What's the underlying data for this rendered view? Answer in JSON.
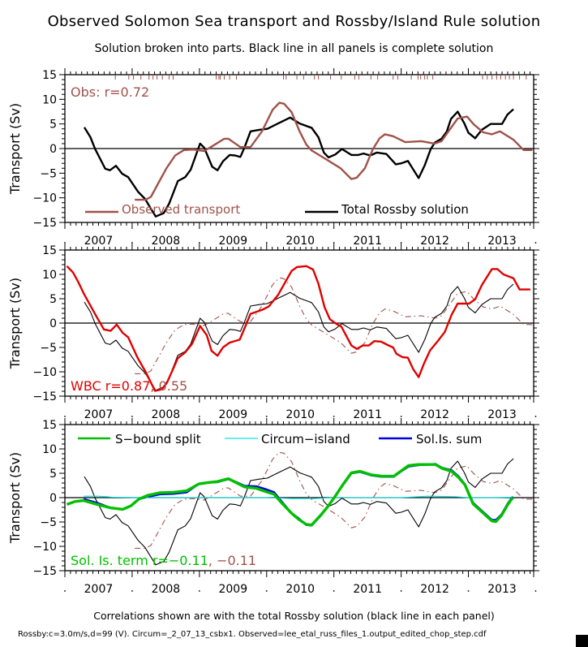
{
  "title": "Observed Solomon Sea transport and Rossby/Island Rule solution",
  "subtitle": "Solution broken into parts. Black line in all panels is complete solution",
  "footnote": "Correlations shown are with the total Rossby solution (black line in each panel)",
  "footnote_small": "Rossby:c=3.0m/s,d=99 (V). Circum=_2_07_13_csbx1. Observed=lee_etal_russ_files_1.output_edited_chop_step.cdf",
  "colors": {
    "observed": "#a0524a",
    "rossby": "#000000",
    "wbc": "#e00000",
    "s_bound": "#00c000",
    "circum": "#00e8e8",
    "sol_is_sum": "#0000e0"
  },
  "chart_data": [
    {
      "type": "line",
      "panel": "top",
      "title": "",
      "xlabel": "",
      "ylabel": "Transport (Sv)",
      "xlim": [
        2007.0,
        2013.97
      ],
      "ylim": [
        -15,
        15
      ],
      "x_tick_labels": [
        "2007",
        "2008",
        "2009",
        "2010",
        "2011",
        "2012",
        "2013"
      ],
      "y_tick_labels": [
        "15",
        "10",
        "5",
        "0",
        "-5",
        "-10",
        "-15"
      ],
      "annotation": "Obs: r=0.72",
      "legend": [
        "Observed transport",
        "Total Rossby solution"
      ],
      "legend_placement": "bottom",
      "obs_sample_ticks": [
        2007.75,
        2007.95,
        2008.02,
        2008.13,
        2008.25,
        2008.31,
        2008.37,
        2008.45,
        2008.55,
        2008.61,
        2009.25,
        2009.29,
        2009.31,
        2009.37,
        2009.45,
        2009.55,
        2010.25,
        2010.29,
        2010.45,
        2010.55,
        2010.71,
        2010.77,
        2010.95,
        2011.11,
        2011.31,
        2011.37,
        2011.55,
        2011.65,
        2011.88,
        2011.95,
        2012.15,
        2012.25,
        2012.29,
        2012.35,
        2012.39,
        2012.47,
        2013.21,
        2013.28,
        2013.35,
        2013.42,
        2013.48,
        2013.55,
        2013.61,
        2013.67,
        2013.76,
        2013.86
      ],
      "series": [
        {
          "name": "Observed transport",
          "key": "observed",
          "style": "solid-thick",
          "x": [
            2008.04,
            2008.2,
            2008.28,
            2008.39,
            2008.51,
            2008.64,
            2008.77,
            2008.91,
            2009.07,
            2009.17,
            2009.37,
            2009.43,
            2009.61,
            2009.76,
            2009.93,
            2010.09,
            2010.19,
            2010.26,
            2010.37,
            2010.49,
            2010.59,
            2010.67,
            2010.9,
            2011.1,
            2011.26,
            2011.34,
            2011.46,
            2011.58,
            2011.68,
            2011.76,
            2011.88,
            2012.06,
            2012.3,
            2012.5,
            2012.6,
            2012.72,
            2012.84,
            2012.98,
            2013.08,
            2013.22,
            2013.35,
            2013.47,
            2013.67,
            2013.82,
            2013.95
          ],
          "y": [
            -10.4,
            -10.4,
            -9.8,
            -7.0,
            -4.0,
            -1.4,
            -0.3,
            -0.2,
            -0.5,
            0.3,
            2.0,
            2.0,
            0.3,
            0.3,
            3.5,
            7.9,
            9.3,
            9.1,
            7.4,
            3.5,
            0.8,
            -0.4,
            -2.3,
            -4.0,
            -6.2,
            -5.9,
            -4.0,
            -0.1,
            2.1,
            2.9,
            2.5,
            1.3,
            1.5,
            1.0,
            1.5,
            3.8,
            6.1,
            6.5,
            4.9,
            3.3,
            2.9,
            3.5,
            1.8,
            -0.3,
            -0.3
          ]
        },
        {
          "name": "Total Rossby solution",
          "key": "rossby",
          "style": "solid-thick",
          "x": [
            2007.29,
            2007.38,
            2007.45,
            2007.6,
            2007.67,
            2007.76,
            2007.85,
            2007.94,
            2008.09,
            2008.19,
            2008.35,
            2008.47,
            2008.55,
            2008.68,
            2008.79,
            2008.87,
            2009.01,
            2009.07,
            2009.19,
            2009.27,
            2009.35,
            2009.45,
            2009.53,
            2009.61,
            2009.67,
            2009.76,
            2009.89,
            2010.01,
            2010.17,
            2010.35,
            2010.49,
            2010.67,
            2010.77,
            2010.85,
            2010.92,
            2011.02,
            2011.12,
            2011.26,
            2011.36,
            2011.44,
            2011.54,
            2011.64,
            2011.78,
            2011.92,
            2012.0,
            2012.1,
            2012.26,
            2012.35,
            2012.44,
            2012.5,
            2012.6,
            2012.68,
            2012.74,
            2012.84,
            2012.94,
            2013.0,
            2013.1,
            2013.2,
            2013.33,
            2013.5,
            2013.58,
            2013.67
          ],
          "y": [
            4.3,
            2.3,
            -0.1,
            -4.1,
            -4.4,
            -3.5,
            -5.1,
            -5.8,
            -8.8,
            -10.2,
            -13.8,
            -13.1,
            -11.2,
            -6.6,
            -5.8,
            -4.3,
            1.0,
            0.2,
            -3.7,
            -4.4,
            -2.6,
            -1.3,
            -1.4,
            -1.7,
            0.2,
            3.5,
            3.8,
            4.0,
            5.1,
            6.3,
            5.1,
            4.2,
            2.3,
            -0.8,
            -1.8,
            -1.2,
            -0.1,
            -1.3,
            -1.3,
            -1.0,
            -1.4,
            -0.8,
            -1.1,
            -3.2,
            -3.0,
            -2.5,
            -6.0,
            -3.4,
            -0.1,
            1.2,
            2.0,
            3.5,
            6.0,
            7.5,
            5.1,
            3.2,
            2.1,
            3.8,
            5.0,
            5.0,
            6.9,
            8.0
          ]
        }
      ]
    },
    {
      "type": "line",
      "panel": "middle",
      "ylabel": "Transport (Sv)",
      "xlim": [
        2007.0,
        2013.97
      ],
      "ylim": [
        -15,
        15
      ],
      "x_tick_labels": [
        "2007",
        "2008",
        "2009",
        "2010",
        "2011",
        "2012",
        "2013"
      ],
      "y_tick_labels": [
        "15",
        "10",
        "5",
        "0",
        "-5",
        "-10",
        "-15"
      ],
      "annotation": "WBC r=0.87",
      "annotation2": ", 0.55",
      "series": [
        {
          "name": "WBC",
          "key": "wbc",
          "style": "solid-thick",
          "x": [
            2007.03,
            2007.12,
            2007.2,
            2007.28,
            2007.38,
            2007.46,
            2007.58,
            2007.68,
            2007.77,
            2007.86,
            2007.94,
            2008.08,
            2008.2,
            2008.34,
            2008.44,
            2008.52,
            2008.68,
            2008.79,
            2008.89,
            2009.01,
            2009.11,
            2009.18,
            2009.27,
            2009.35,
            2009.45,
            2009.6,
            2009.67,
            2009.76,
            2009.93,
            2010.03,
            2010.17,
            2010.37,
            2010.45,
            2010.59,
            2010.69,
            2010.77,
            2010.86,
            2010.94,
            2011.04,
            2011.11,
            2011.26,
            2011.34,
            2011.43,
            2011.52,
            2011.6,
            2011.7,
            2011.8,
            2011.88,
            2011.93,
            2012.02,
            2012.1,
            2012.18,
            2012.26,
            2012.34,
            2012.43,
            2012.55,
            2012.65,
            2012.75,
            2012.84,
            2013.01,
            2013.1,
            2013.2,
            2013.35,
            2013.43,
            2013.52,
            2013.67,
            2013.76,
            2013.92
          ],
          "y": [
            11.7,
            10.4,
            8.4,
            6.1,
            3.6,
            1.6,
            -1.3,
            -1.6,
            -0.3,
            -2.0,
            -2.9,
            -7.1,
            -10.0,
            -13.9,
            -13.6,
            -12.2,
            -7.2,
            -6.0,
            -4.3,
            -0.6,
            -2.5,
            -5.7,
            -6.7,
            -5.0,
            -4.0,
            -3.4,
            -1.1,
            1.9,
            2.7,
            3.4,
            5.8,
            10.7,
            11.5,
            11.7,
            11.0,
            8.1,
            3.3,
            0.8,
            -0.2,
            -0.7,
            -4.6,
            -5.3,
            -4.6,
            -4.6,
            -3.7,
            -3.8,
            -4.5,
            -5.0,
            -6.3,
            -7.0,
            -7.1,
            -9.5,
            -11.1,
            -8.3,
            -5.6,
            -3.6,
            -1.8,
            1.7,
            4.0,
            4.0,
            4.9,
            7.8,
            11.1,
            11.1,
            10.0,
            9.2,
            6.9,
            6.9
          ]
        },
        {
          "name": "Total Rossby solution",
          "key": "rossby",
          "style": "solid-thin",
          "ref": "top.rossby"
        },
        {
          "name": "Observed transport",
          "key": "observed",
          "style": "dashdot",
          "ref": "top.observed"
        }
      ]
    },
    {
      "type": "line",
      "panel": "bottom",
      "ylabel": "Transport (Sv)",
      "xlim": [
        2007.0,
        2013.97
      ],
      "ylim": [
        -15,
        15
      ],
      "x_tick_labels": [
        "2007",
        "2008",
        "2009",
        "2010",
        "2011",
        "2012",
        "2013"
      ],
      "y_tick_labels": [
        "15",
        "10",
        "5",
        "0",
        "-5",
        "-10",
        "-15"
      ],
      "annotation": "Sol. Is. term r=−0.11",
      "annotation2": ", −0.11",
      "legend": [
        "S−bound split",
        "Circum−island",
        "Sol.Is. sum"
      ],
      "legend_placement": "top",
      "series": [
        {
          "name": "S-bound split",
          "key": "s_bound",
          "style": "solid-thick",
          "x": [
            2007.03,
            2007.15,
            2007.28,
            2007.48,
            2007.68,
            2007.86,
            2007.98,
            2008.1,
            2008.24,
            2008.41,
            2008.61,
            2008.81,
            2008.99,
            2009.13,
            2009.27,
            2009.43,
            2009.53,
            2009.67,
            2009.85,
            2009.99,
            2010.11,
            2010.21,
            2010.37,
            2010.47,
            2010.59,
            2010.67,
            2010.81,
            2010.9,
            2011.02,
            2011.14,
            2011.26,
            2011.39,
            2011.55,
            2011.71,
            2011.89,
            2011.99,
            2012.11,
            2012.26,
            2012.43,
            2012.51,
            2012.61,
            2012.75,
            2012.85,
            2012.95,
            2013.07,
            2013.23,
            2013.35,
            2013.41,
            2013.49,
            2013.59,
            2013.66
          ],
          "y": [
            -1.4,
            -0.8,
            -0.6,
            -1.4,
            -2.1,
            -2.4,
            -1.7,
            -0.3,
            0.5,
            1.0,
            1.1,
            1.4,
            2.8,
            3.1,
            3.3,
            3.9,
            3.2,
            2.2,
            1.9,
            1.2,
            0.7,
            -0.9,
            -3.2,
            -4.4,
            -5.5,
            -5.6,
            -3.5,
            -2.0,
            0.3,
            2.8,
            5.1,
            5.4,
            4.7,
            4.4,
            4.4,
            5.4,
            6.6,
            6.8,
            6.8,
            6.8,
            6.0,
            5.4,
            4.2,
            2.6,
            -1.3,
            -3.3,
            -4.8,
            -4.9,
            -3.7,
            -1.3,
            0.0
          ]
        },
        {
          "name": "Circum-island",
          "key": "circum",
          "style": "solid-thin",
          "x": [
            2007.28,
            2007.5,
            2007.7,
            2008.1,
            2008.5,
            2009.0,
            2009.5,
            2010.0,
            2010.4,
            2010.7,
            2011.0,
            2011.5,
            2012.0,
            2012.4,
            2012.8,
            2013.0,
            2013.4,
            2013.66
          ],
          "y": [
            0.3,
            0.3,
            0.1,
            0.0,
            0.0,
            0.0,
            0.0,
            0.0,
            -0.2,
            -0.2,
            0.0,
            0.0,
            0.0,
            0.3,
            0.2,
            0.0,
            0.0,
            0.1
          ]
        },
        {
          "name": "Sol.Is. sum",
          "key": "sol_is_sum",
          "style": "solid-thick",
          "x": [
            2007.28,
            2007.48,
            2007.68,
            2007.86,
            2007.98,
            2008.1,
            2008.24,
            2008.41,
            2008.61,
            2008.81,
            2008.99,
            2009.13,
            2009.27,
            2009.43,
            2009.53,
            2009.67,
            2009.85,
            2009.99,
            2010.11,
            2010.21,
            2010.37,
            2010.47,
            2010.59,
            2010.67,
            2010.81,
            2010.9,
            2011.02,
            2011.14,
            2011.26,
            2011.39,
            2011.55,
            2011.71,
            2011.89,
            2011.99,
            2012.11,
            2012.26,
            2012.43,
            2012.51,
            2012.61,
            2012.75,
            2012.85,
            2012.95,
            2013.07,
            2013.23,
            2013.35,
            2013.41,
            2013.49,
            2013.59,
            2013.66
          ],
          "y": [
            -0.3,
            -1.1,
            -2.1,
            -2.4,
            -1.7,
            -0.3,
            0.2,
            0.7,
            0.8,
            1.1,
            2.8,
            3.1,
            3.2,
            3.8,
            3.3,
            2.4,
            2.3,
            1.7,
            1.1,
            -0.6,
            -3.2,
            -4.2,
            -5.6,
            -5.7,
            -3.6,
            -2.0,
            0.3,
            2.7,
            5.0,
            5.3,
            4.6,
            4.3,
            4.3,
            5.3,
            6.4,
            6.7,
            6.8,
            6.9,
            6.1,
            5.6,
            4.4,
            2.7,
            -1.1,
            -3.1,
            -4.6,
            -4.6,
            -3.5,
            -1.1,
            0.2
          ]
        },
        {
          "name": "Total Rossby solution",
          "key": "rossby",
          "style": "solid-thin",
          "ref": "top.rossby"
        },
        {
          "name": "Observed transport",
          "key": "observed",
          "style": "dashdot",
          "ref": "top.observed"
        }
      ]
    }
  ]
}
